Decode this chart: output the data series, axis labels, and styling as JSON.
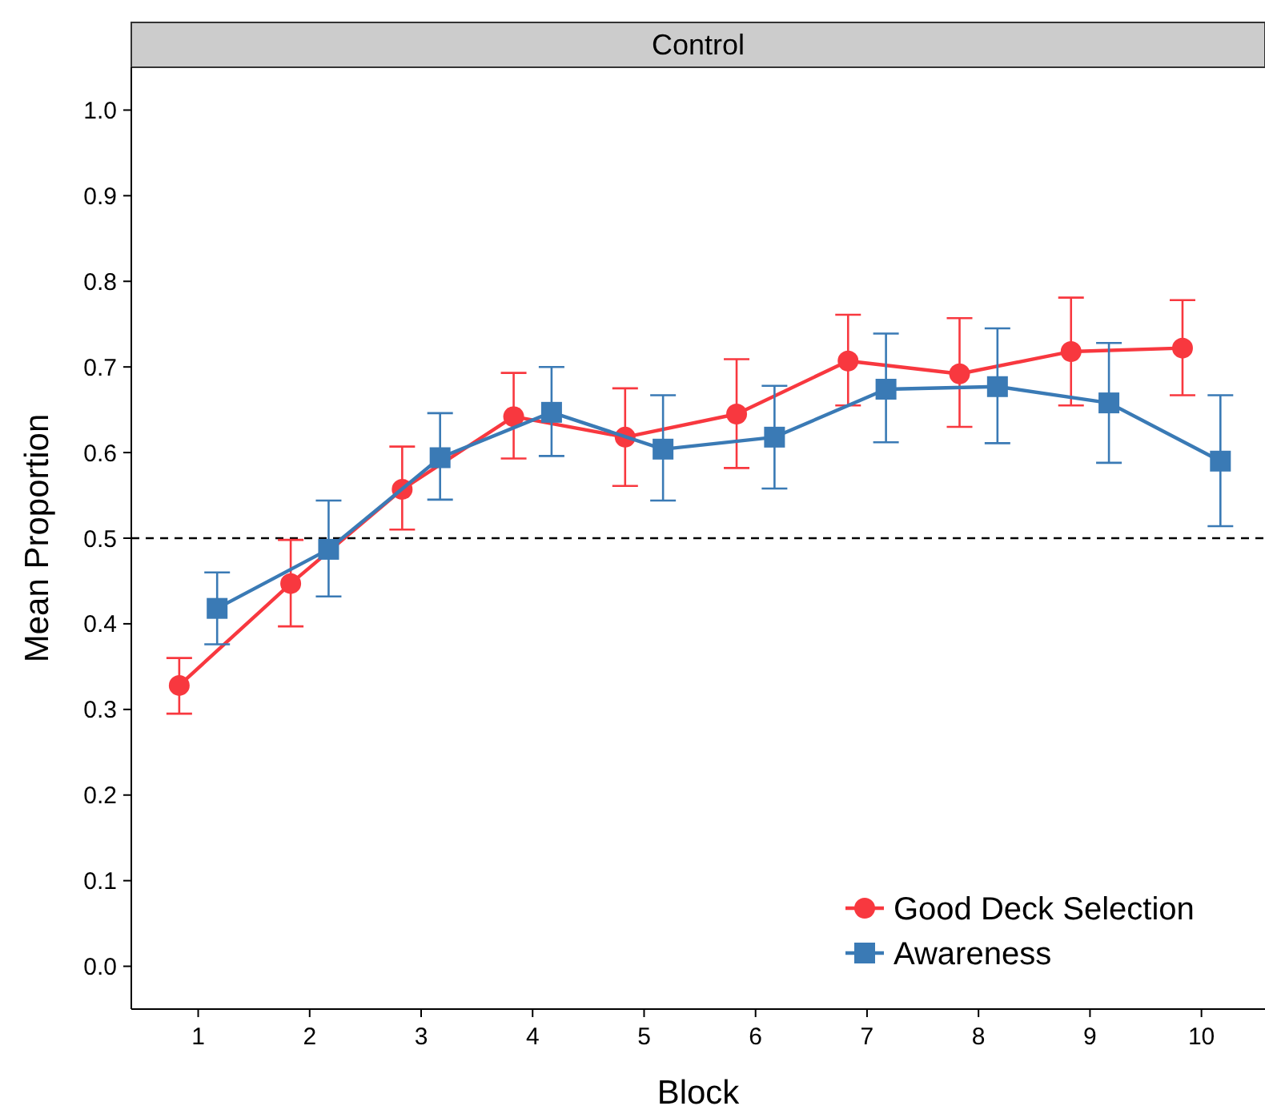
{
  "chart_data": {
    "type": "line",
    "title": "Control",
    "xlabel": "Block",
    "ylabel": "Mean Proportion",
    "categories": [
      "1",
      "2",
      "3",
      "4",
      "5",
      "6",
      "7",
      "8",
      "9",
      "10"
    ],
    "ylim": [
      -0.05,
      1.05
    ],
    "yticks": [
      {
        "value": 0,
        "label": "0.0"
      },
      0.1,
      0.2,
      0.3,
      0.4,
      0.5,
      0.6,
      0.7,
      0.8,
      0.9,
      {
        "value": 1,
        "label": "1.0"
      }
    ],
    "grid": false,
    "legend": "bottom right",
    "line_style": "solid",
    "ref_lines": [
      {
        "axis": "y",
        "value": 0.5,
        "color": "#000000",
        "line_style": "dashed"
      }
    ],
    "series": [
      {
        "name": "Good Deck Selection",
        "color": "#f8383f",
        "marker": "circle",
        "values": [
          0.328,
          0.447,
          0.557,
          0.642,
          0.618,
          0.645,
          0.707,
          0.692,
          0.718,
          0.722
        ],
        "errors": [
          [
            0.295,
            0.36
          ],
          [
            0.397,
            0.498
          ],
          [
            0.51,
            0.607
          ],
          [
            0.593,
            0.693
          ],
          [
            0.561,
            0.675
          ],
          [
            0.582,
            0.709
          ],
          [
            0.655,
            0.761
          ],
          [
            0.63,
            0.757
          ],
          [
            0.655,
            0.781
          ],
          [
            0.667,
            0.778
          ]
        ]
      },
      {
        "name": "Awareness",
        "color": "#3a7ab5",
        "marker": "square",
        "values": [
          0.418,
          0.487,
          0.594,
          0.647,
          0.604,
          0.618,
          0.674,
          0.677,
          0.658,
          0.59
        ],
        "errors": [
          [
            0.376,
            0.46
          ],
          [
            0.432,
            0.544
          ],
          [
            0.545,
            0.646
          ],
          [
            0.596,
            0.7
          ],
          [
            0.544,
            0.667
          ],
          [
            0.558,
            0.678
          ],
          [
            0.612,
            0.739
          ],
          [
            0.611,
            0.745
          ],
          [
            0.588,
            0.728
          ],
          [
            0.514,
            0.667
          ]
        ]
      }
    ]
  }
}
